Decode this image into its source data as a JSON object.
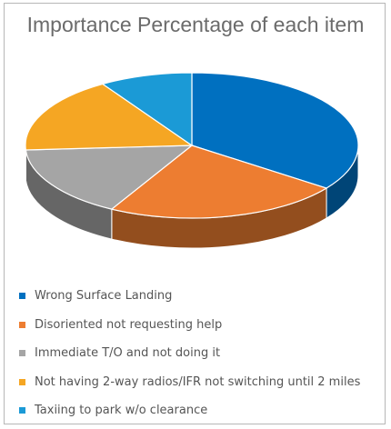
{
  "chart_data": {
    "type": "pie",
    "title": "Importance Percentage of each item",
    "legend_position": "bottom",
    "series": [
      {
        "name": "Wrong Surface Landing",
        "value": 35,
        "color": "#0070C0"
      },
      {
        "name": "Disoriented not requesting help",
        "value": 23,
        "color": "#ED7D31"
      },
      {
        "name": "Immediate T/O and not doing it",
        "value": 16,
        "color": "#A5A5A5"
      },
      {
        "name": "Not having 2-way radios/IFR not switching until 2 miles",
        "value": 17,
        "color": "#F5A623"
      },
      {
        "name": "Taxiing to park w/o clearance",
        "value": 9,
        "color": "#1B9AD6"
      }
    ]
  }
}
